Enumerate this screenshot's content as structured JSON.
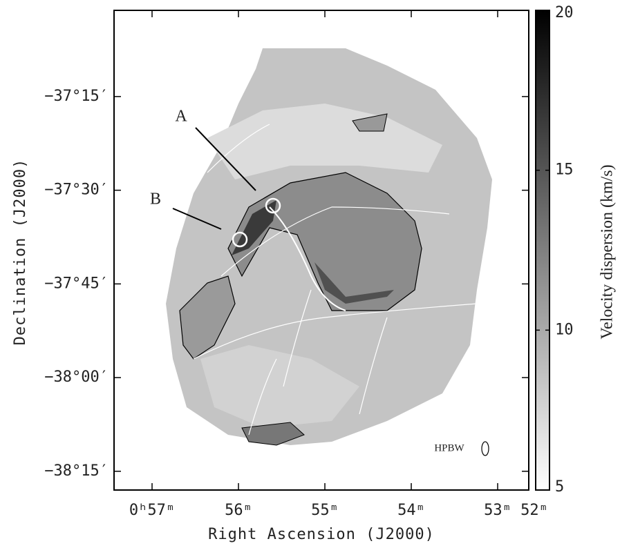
{
  "chart_data": {
    "type": "image",
    "xlabel": "Right Ascension (J2000)",
    "ylabel": "Declination (J2000)",
    "xlim": [
      57.44,
      52.64
    ],
    "ylim": [
      -38.3,
      -37.02
    ],
    "xticks": [
      {
        "value": 57,
        "label": "0ʰ57ᵐ"
      },
      {
        "value": 56,
        "label": "56ᵐ"
      },
      {
        "value": 55,
        "label": "55ᵐ"
      },
      {
        "value": 54,
        "label": "54ᵐ"
      },
      {
        "value": 53,
        "label": "53ᵐ"
      },
      {
        "value": 52,
        "label": "52ᵐ"
      }
    ],
    "yticks": [
      {
        "value": -37.25,
        "label": "−37°15′"
      },
      {
        "value": -37.5,
        "label": "−37°30′"
      },
      {
        "value": -37.75,
        "label": "−37°45′"
      },
      {
        "value": -38.0,
        "label": "−38°00′"
      },
      {
        "value": -38.25,
        "label": "−38°15′"
      }
    ],
    "colorbar": {
      "label": "Velocity dispersion (km/s)",
      "lim": [
        5,
        20
      ],
      "ticks": [
        5,
        10,
        15,
        20
      ],
      "colors": [
        "#ffffff",
        "#000000"
      ]
    },
    "annotations": [
      "A",
      "B",
      "HPBW"
    ]
  }
}
